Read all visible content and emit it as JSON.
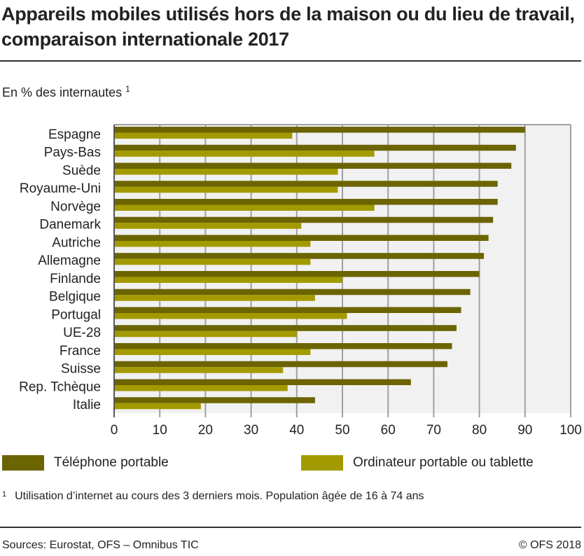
{
  "title": "Appareils mobiles utilisés hors de la maison ou du lieu de travail, comparaison internationale 2017",
  "subtitle": "En % des internautes",
  "subtitle_note": "1",
  "footnote_mark": "1",
  "footnote": "Utilisation d’internet au cours des 3 derniers mois. Population âgée de 16 à 74 ans",
  "source": "Sources: Eurostat, OFS – Omnibus TIC",
  "copyright": "© OFS 2018",
  "colors": {
    "phone": "#6b6400",
    "laptop": "#a39a00",
    "plot_bg": "#f1f1f1",
    "grid": "#a0a0a0"
  },
  "chart_data": {
    "type": "bar",
    "orientation": "horizontal",
    "categories": [
      "Espagne",
      "Pays-Bas",
      "Suède",
      "Royaume-Uni",
      "Norvège",
      "Danemark",
      "Autriche",
      "Allemagne",
      "Finlande",
      "Belgique",
      "Portugal",
      "UE-28",
      "France",
      "Suisse",
      "Rep. Tchèque",
      "Italie"
    ],
    "series": [
      {
        "name": "Téléphone portable",
        "values": [
          90,
          88,
          87,
          84,
          84,
          83,
          82,
          81,
          80,
          78,
          76,
          75,
          74,
          73,
          65,
          44
        ]
      },
      {
        "name": "Ordinateur portable ou tablette",
        "values": [
          39,
          57,
          49,
          49,
          57,
          41,
          43,
          43,
          50,
          44,
          51,
          40,
          43,
          37,
          38,
          19
        ]
      }
    ],
    "xlim": [
      0,
      100
    ],
    "xticks": [
      "0",
      "10",
      "20",
      "30",
      "40",
      "50",
      "60",
      "70",
      "80",
      "90",
      "100"
    ],
    "grid": true,
    "legend": "bottom"
  }
}
